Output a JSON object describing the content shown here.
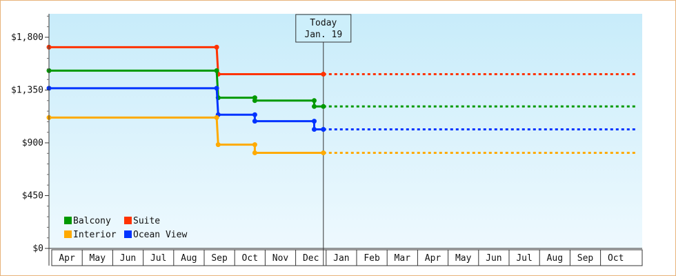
{
  "chart_data": {
    "type": "line",
    "step": true,
    "title": "",
    "xlabel": "",
    "ylabel": "",
    "ylim": [
      0,
      2000
    ],
    "y_ticks": [
      {
        "value": 0,
        "label": "$0"
      },
      {
        "value": 450,
        "label": "$450"
      },
      {
        "value": 900,
        "label": "$900"
      },
      {
        "value": 1350,
        "label": "$1,350"
      },
      {
        "value": 1800,
        "label": "$1,800"
      }
    ],
    "months": [
      "Apr",
      "May",
      "Jun",
      "Jul",
      "Aug",
      "Sep",
      "Oct",
      "Nov",
      "Dec",
      "Jan",
      "Feb",
      "Mar",
      "Apr",
      "May",
      "Jun",
      "Jul",
      "Aug",
      "Sep",
      "Oct"
    ],
    "today": {
      "line1": "Today",
      "line2": "Jan. 19",
      "x": 9.0
    },
    "series": [
      {
        "name": "Suite",
        "color": "#ff3300",
        "points": [
          [
            0,
            1715
          ],
          [
            5.5,
            1715
          ],
          [
            5.55,
            1485
          ],
          [
            9.0,
            1485
          ]
        ],
        "forecast": [
          [
            9.0,
            1485
          ],
          [
            19.3,
            1485
          ]
        ]
      },
      {
        "name": "Balcony",
        "color": "#009900",
        "points": [
          [
            0,
            1515
          ],
          [
            5.5,
            1515
          ],
          [
            5.55,
            1285
          ],
          [
            6.75,
            1285
          ],
          [
            6.75,
            1260
          ],
          [
            8.7,
            1260
          ],
          [
            8.7,
            1210
          ],
          [
            9.0,
            1210
          ]
        ],
        "forecast": [
          [
            9.0,
            1210
          ],
          [
            19.3,
            1210
          ]
        ]
      },
      {
        "name": "Ocean View",
        "color": "#0033ff",
        "points": [
          [
            0,
            1365
          ],
          [
            5.5,
            1365
          ],
          [
            5.55,
            1140
          ],
          [
            6.75,
            1140
          ],
          [
            6.75,
            1085
          ],
          [
            8.7,
            1085
          ],
          [
            8.7,
            1015
          ],
          [
            9.0,
            1015
          ]
        ],
        "forecast": [
          [
            9.0,
            1015
          ],
          [
            19.3,
            1015
          ]
        ]
      },
      {
        "name": "Interior",
        "color": "#ffaa00",
        "points": [
          [
            0,
            1115
          ],
          [
            5.5,
            1115
          ],
          [
            5.55,
            885
          ],
          [
            6.75,
            885
          ],
          [
            6.75,
            815
          ],
          [
            9.0,
            815
          ]
        ],
        "forecast": [
          [
            9.0,
            815
          ],
          [
            19.3,
            815
          ]
        ]
      }
    ],
    "legend": [
      {
        "name": "Balcony",
        "color": "#009900"
      },
      {
        "name": "Suite",
        "color": "#ff3300"
      },
      {
        "name": "Interior",
        "color": "#ffaa00"
      },
      {
        "name": "Ocean View",
        "color": "#0033ff"
      }
    ],
    "legend_position": "bottom-left",
    "grid": false
  }
}
